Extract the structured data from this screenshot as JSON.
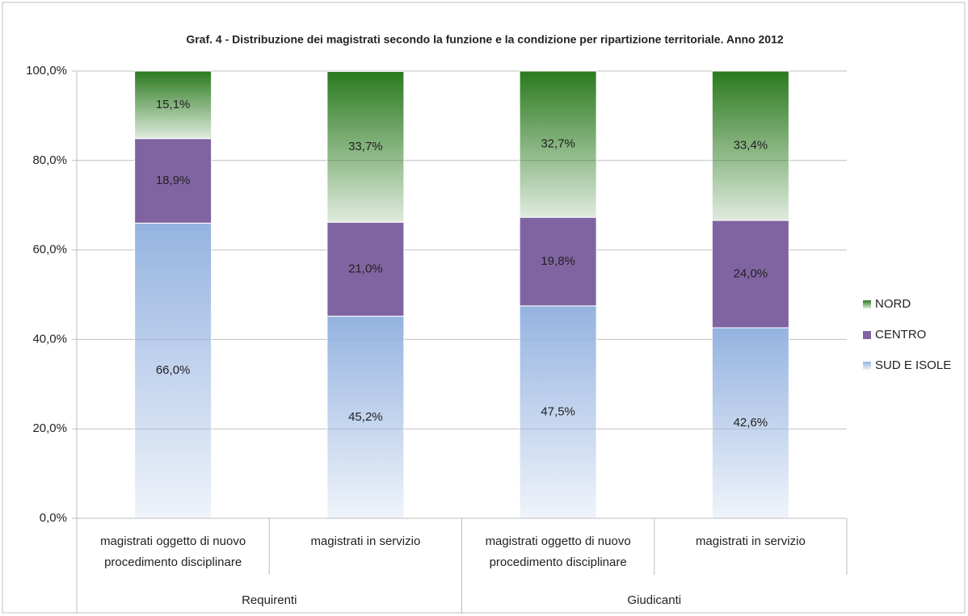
{
  "chart_data": {
    "type": "stacked_bar",
    "title": "Graf. 4 - Distribuzione dei magistrati secondo la funzione e la condizione per ripartizione territoriale.  Anno 2012",
    "categories": [
      "magistrati oggetto di nuovo procedimento disciplinare",
      "magistrati in servizio",
      "magistrati oggetto di nuovo procedimento disciplinare",
      "magistrati in servizio"
    ],
    "groups": [
      "Requirenti",
      "Giudicanti"
    ],
    "series": [
      {
        "name": "SUD E ISOLE",
        "color": "#95b3e0",
        "gradient": true,
        "values": [
          66.0,
          45.2,
          47.5,
          42.6
        ],
        "value_labels": [
          "66,0%",
          "45,2%",
          "47,5%",
          "42,6%"
        ]
      },
      {
        "name": "CENTRO",
        "color": "#8064a2",
        "gradient": false,
        "values": [
          18.9,
          21.0,
          19.8,
          24.0
        ],
        "value_labels": [
          "18,9%",
          "21,0%",
          "19,8%",
          "24,0%"
        ]
      },
      {
        "name": "NORD",
        "color": "#2a7a1e",
        "gradient": true,
        "values": [
          15.1,
          33.7,
          32.7,
          33.4
        ],
        "value_labels": [
          "15,1%",
          "33,7%",
          "32,7%",
          "33,4%"
        ]
      }
    ],
    "ylim": [
      0,
      100
    ],
    "yticks": [
      {
        "value": 0,
        "label": "0,0%"
      },
      {
        "value": 20,
        "label": "20,0%"
      },
      {
        "value": 40,
        "label": "40,0%"
      },
      {
        "value": 60,
        "label": "60,0%"
      },
      {
        "value": 80,
        "label": "80,0%"
      },
      {
        "value": 100,
        "label": "100,0%"
      }
    ],
    "grid": true,
    "legend": "right"
  }
}
